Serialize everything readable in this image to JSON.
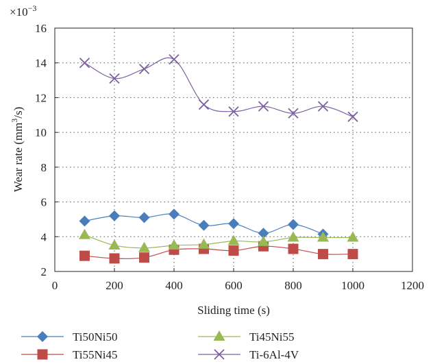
{
  "chart_data": {
    "type": "line",
    "title": "",
    "xlabel": "Sliding time (s)",
    "ylabel_main": "Wear rate (mm",
    "ylabel_sup": "3",
    "ylabel_tail": "/s)",
    "y_multiplier_base": "×10",
    "y_multiplier_exp": "−3",
    "xlim": [
      0,
      1200
    ],
    "ylim": [
      2,
      16
    ],
    "xticks": [
      0,
      200,
      400,
      600,
      800,
      1000,
      1200
    ],
    "yticks": [
      2,
      4,
      6,
      8,
      10,
      12,
      14,
      16
    ],
    "grid": "dotted",
    "legend_position": "bottom",
    "series": [
      {
        "name": "Ti50Ni50",
        "color": "#4a7ebb",
        "marker": "diamond",
        "x": [
          100,
          200,
          300,
          400,
          500,
          600,
          700,
          800,
          900
        ],
        "y": [
          4.9,
          5.2,
          5.1,
          5.3,
          4.65,
          4.75,
          4.2,
          4.7,
          4.15
        ]
      },
      {
        "name": "Ti55Ni45",
        "color": "#be4b48",
        "marker": "square",
        "x": [
          100,
          200,
          300,
          400,
          500,
          600,
          700,
          800,
          900,
          1000
        ],
        "y": [
          2.9,
          2.75,
          2.8,
          3.25,
          3.3,
          3.2,
          3.45,
          3.3,
          3.0,
          3.0
        ]
      },
      {
        "name": "Ti45Ni55",
        "color": "#98b954",
        "marker": "triangle",
        "x": [
          100,
          200,
          300,
          400,
          500,
          600,
          700,
          800,
          900,
          1000
        ],
        "y": [
          4.1,
          3.5,
          3.35,
          3.5,
          3.55,
          3.75,
          3.7,
          3.95,
          3.95,
          3.95
        ]
      },
      {
        "name": "Ti-6Al-4V",
        "color": "#7d60a0",
        "marker": "x",
        "x": [
          100,
          200,
          300,
          400,
          500,
          600,
          700,
          800,
          900,
          1000
        ],
        "y": [
          14.0,
          13.1,
          13.65,
          14.2,
          11.6,
          11.2,
          11.5,
          11.1,
          11.5,
          10.9
        ]
      }
    ]
  }
}
